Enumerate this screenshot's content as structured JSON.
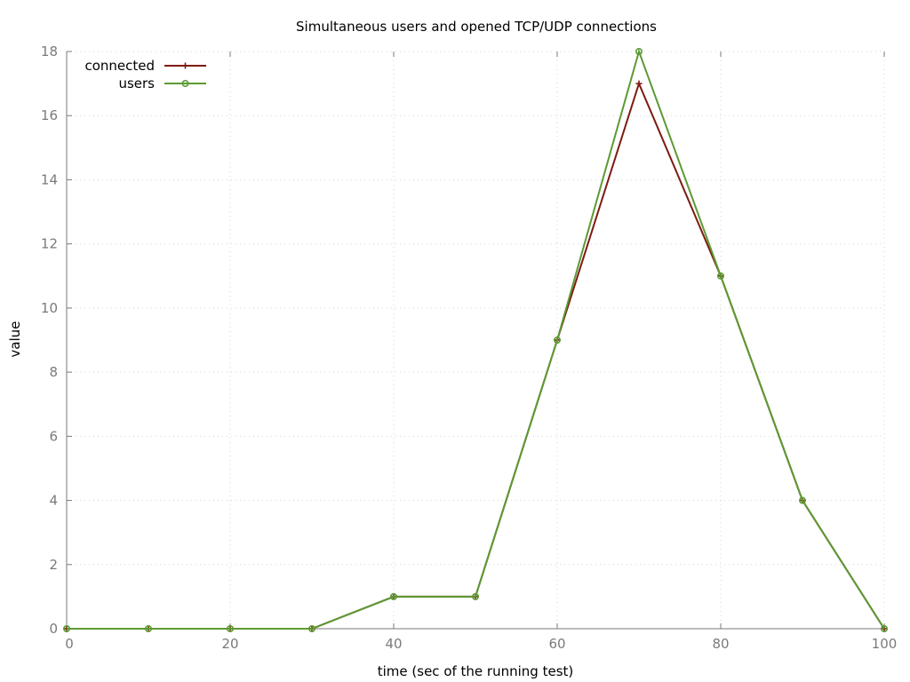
{
  "chart_data": {
    "type": "line",
    "title": "Simultaneous users and opened TCP/UDP connections",
    "xlabel": "time (sec of the running test)",
    "ylabel": "value",
    "xlim": [
      0,
      100
    ],
    "ylim": [
      0,
      18
    ],
    "x_ticks": [
      "0",
      "20",
      "40",
      "60",
      "80",
      "100"
    ],
    "y_ticks": [
      "0",
      "2",
      "4",
      "6",
      "8",
      "10",
      "12",
      "14",
      "16",
      "18"
    ],
    "grid": true,
    "legend_position": "top-left",
    "x": [
      0,
      10,
      20,
      30,
      40,
      50,
      60,
      70,
      80,
      90,
      100
    ],
    "series": [
      {
        "name": "connected",
        "color": "#7d1a12",
        "marker": "plus",
        "values": [
          0,
          0,
          0,
          0,
          1,
          1,
          9,
          17,
          11,
          4,
          0
        ]
      },
      {
        "name": "users",
        "color": "#5c9a33",
        "marker": "circle",
        "values": [
          0,
          0,
          0,
          0,
          1,
          1,
          9,
          18,
          11,
          4,
          0
        ]
      }
    ]
  }
}
